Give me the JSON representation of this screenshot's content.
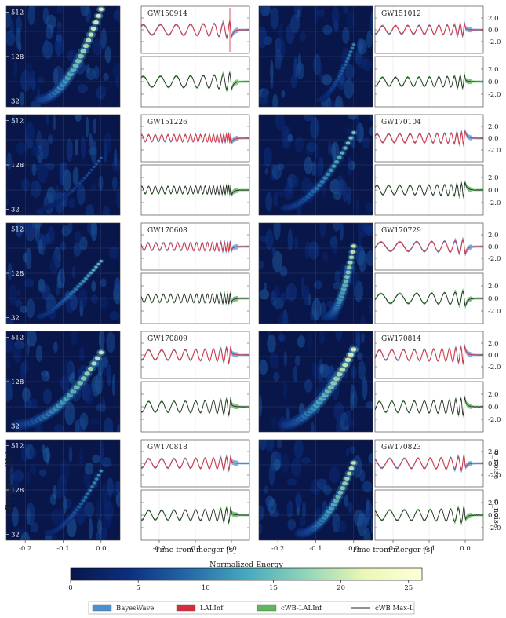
{
  "figure": {
    "ylabel_spec": "Frequency [Hz]",
    "xlabel_time": "Time from merger [s]",
    "ylabel_wave": "σ_noise",
    "colorbar_title": "Normalized Energy"
  },
  "chart_data": {
    "type": "heatmap",
    "spectrogram": {
      "y_ticks": [
        "512",
        "128",
        "32"
      ],
      "x_ticks": [
        "-0.2",
        "-0.1",
        "0.0"
      ],
      "xlim": [
        -0.25,
        0.05
      ],
      "y_scale": "log2"
    },
    "waveform": {
      "y_ticks": [
        "2.0",
        "0.0",
        "-2.0"
      ],
      "x_ticks": [
        "-0.2",
        "-0.1",
        "0.0"
      ],
      "xlim": [
        -0.25,
        0.05
      ]
    },
    "colorbar": {
      "ticks": [
        "0",
        "5",
        "10",
        "15",
        "20",
        "25"
      ],
      "range": [
        0,
        26
      ],
      "colors": [
        "#08164a",
        "#0c2f80",
        "#2468a8",
        "#46a9be",
        "#90d4b8",
        "#e9f7b5",
        "#ffffd9"
      ]
    },
    "events": [
      "GW150914",
      "GW151012",
      "GW151226",
      "GW170104",
      "GW170608",
      "GW170729",
      "GW170809",
      "GW170814",
      "GW170818",
      "GW170823"
    ],
    "legend": [
      {
        "name": "BayesWave",
        "color": "#4a8fd0",
        "style": "band"
      },
      {
        "name": "LALInf",
        "color": "#d62c3c",
        "style": "band"
      },
      {
        "name": "cWB-LALInf",
        "color": "#5cb85c",
        "style": "band"
      },
      {
        "name": "cWB Max-L",
        "color": "#222222",
        "style": "line"
      }
    ]
  }
}
